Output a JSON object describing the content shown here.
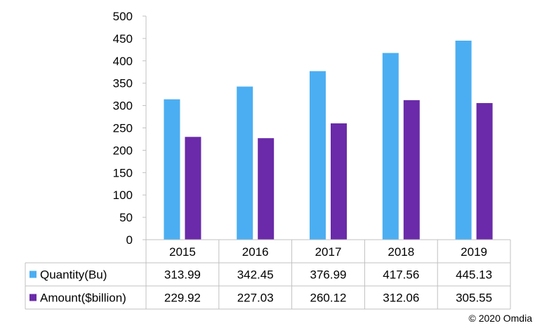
{
  "chart_data": {
    "type": "bar",
    "categories": [
      "2015",
      "2016",
      "2017",
      "2018",
      "2019"
    ],
    "series": [
      {
        "name": "Quantity(Bu)",
        "color": "#4baef2",
        "values": [
          313.99,
          342.45,
          376.99,
          417.56,
          445.13
        ],
        "labels": [
          "313.99",
          "342.45",
          "376.99",
          "417.56",
          "445.13"
        ]
      },
      {
        "name": "Amount($billion)",
        "color": "#6a2aa9",
        "values": [
          229.92,
          227.03,
          260.12,
          312.06,
          305.55
        ],
        "labels": [
          "229.92",
          "227.03",
          "260.12",
          "312.06",
          "305.55"
        ]
      }
    ],
    "ylim": [
      0,
      500
    ],
    "yticks": [
      "0",
      "50",
      "100",
      "150",
      "200",
      "250",
      "300",
      "350",
      "400",
      "450",
      "500"
    ],
    "grid": false,
    "data_table": true
  },
  "footer": {
    "credit": "© 2020 Omdia"
  },
  "colors": {
    "axis": "#c0c0c0",
    "text": "#000000"
  }
}
